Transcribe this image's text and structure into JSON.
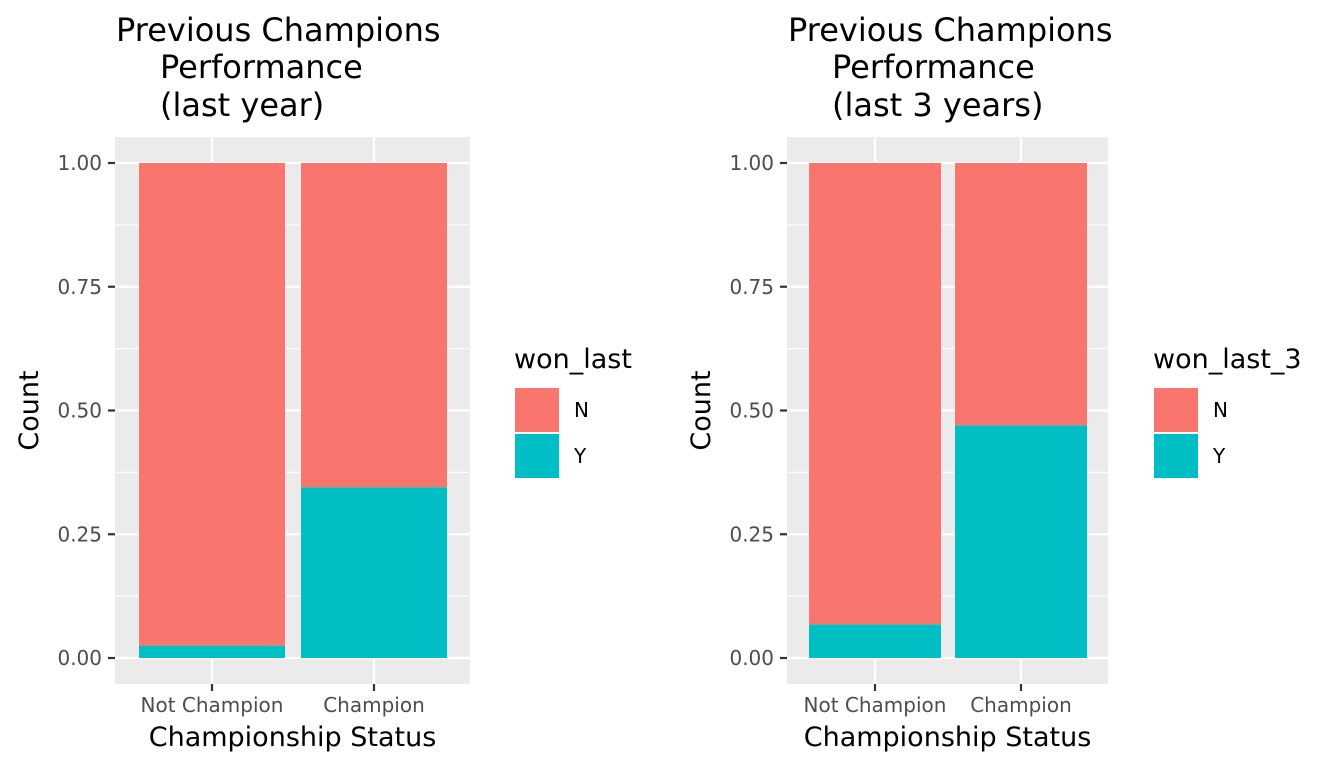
{
  "colors": {
    "N": "#F8766D",
    "Y": "#00BFC4",
    "panel_background": "#EBEBEB",
    "grid": "#FFFFFF"
  },
  "chart_data": [
    {
      "type": "bar",
      "stacked": true,
      "title": [
        "Previous Champions",
        "Performance",
        "(last year)"
      ],
      "xlabel": "Championship Status",
      "ylabel": "Count",
      "categories": [
        "Not Champion",
        "Champion"
      ],
      "ylim": [
        0,
        1
      ],
      "yticks": [
        "0.00",
        "0.25",
        "0.50",
        "0.75",
        "1.00"
      ],
      "grid": true,
      "legend": {
        "title": "won_last",
        "position": "right",
        "labels": [
          "N",
          "Y"
        ]
      },
      "series": [
        {
          "name": "Y",
          "values": [
            0.025,
            0.345
          ]
        },
        {
          "name": "N",
          "values": [
            0.975,
            0.655
          ]
        }
      ]
    },
    {
      "type": "bar",
      "stacked": true,
      "title": [
        "Previous Champions",
        "Performance",
        "(last 3 years)"
      ],
      "xlabel": "Championship Status",
      "ylabel": "Count",
      "categories": [
        "Not Champion",
        "Champion"
      ],
      "ylim": [
        0,
        1
      ],
      "yticks": [
        "0.00",
        "0.25",
        "0.50",
        "0.75",
        "1.00"
      ],
      "grid": true,
      "legend": {
        "title": "won_last_3",
        "position": "right",
        "labels": [
          "N",
          "Y"
        ]
      },
      "series": [
        {
          "name": "Y",
          "values": [
            0.068,
            0.47
          ]
        },
        {
          "name": "N",
          "values": [
            0.932,
            0.53
          ]
        }
      ]
    }
  ]
}
